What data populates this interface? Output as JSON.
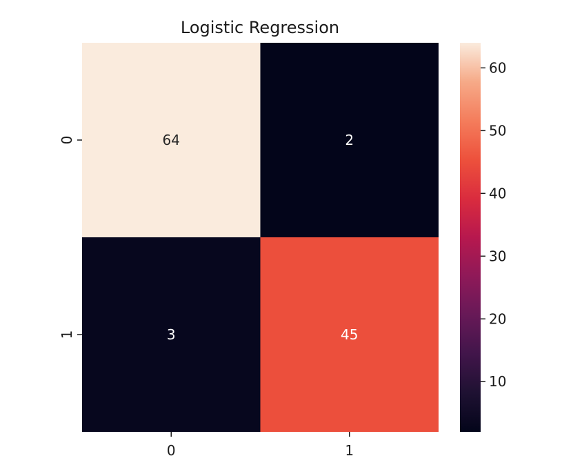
{
  "chart_data": {
    "type": "heatmap",
    "title": "Logistic Regression",
    "xlabel": "",
    "ylabel": "",
    "x_categories": [
      "0",
      "1"
    ],
    "y_categories": [
      "0",
      "1"
    ],
    "values": [
      [
        64,
        2
      ],
      [
        3,
        45
      ]
    ],
    "annotations": [
      [
        "64",
        "2"
      ],
      [
        "3",
        "45"
      ]
    ],
    "colormap": "rocket",
    "colorbar": {
      "vmin": 2,
      "vmax": 64,
      "ticks": [
        10,
        20,
        30,
        40,
        50,
        60
      ]
    },
    "grid": false
  }
}
